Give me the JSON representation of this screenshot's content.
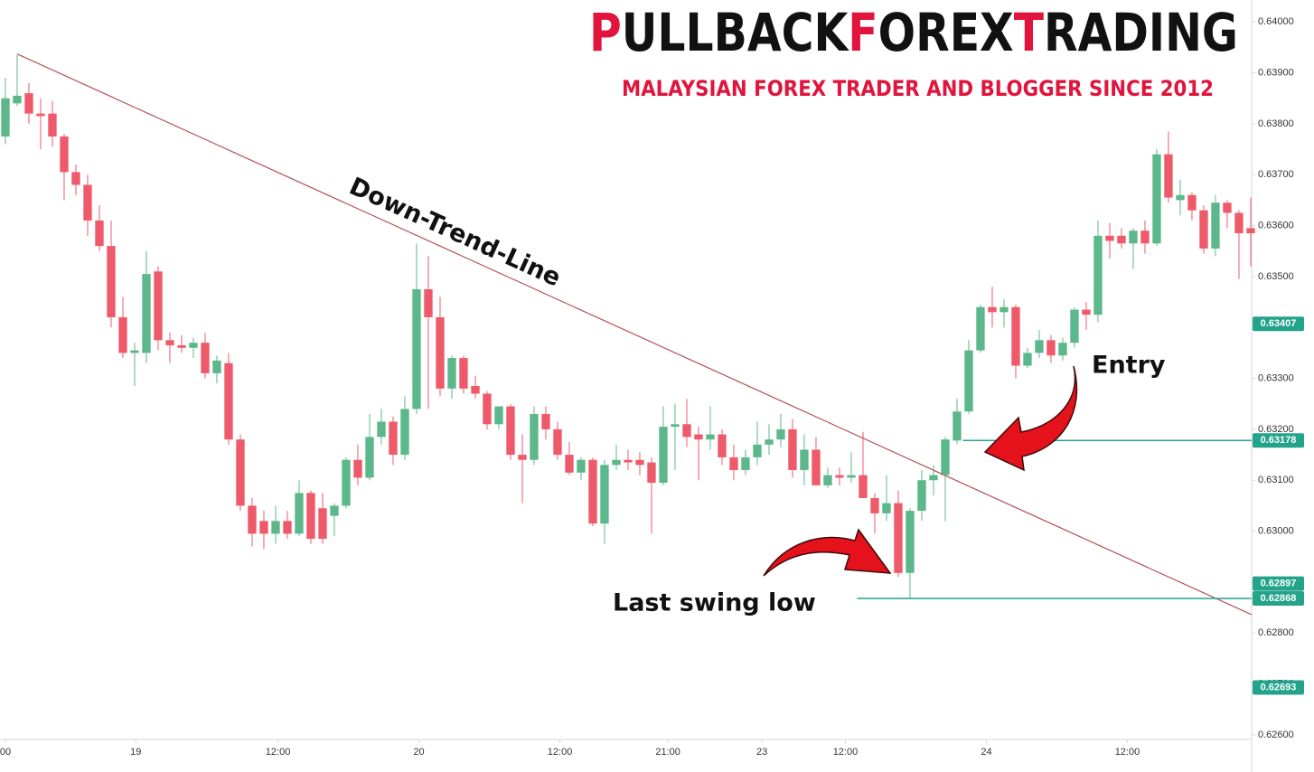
{
  "chart_data": {
    "type": "candlestick",
    "title_parts": [
      "P",
      "ULLBACK",
      "F",
      "OREX",
      "T",
      "RADING"
    ],
    "subtitle": "MALAYSIAN FOREX TRADER AND BLOGGER SINCE 2012",
    "annotations": [
      "Down-Trend-Line",
      "Entry",
      "Last swing low"
    ],
    "up_color": "#5cb88a",
    "down_color": "#ef5a6a",
    "x": [
      0,
      1,
      2,
      3,
      4,
      5,
      6,
      7,
      8,
      9,
      10,
      11,
      12,
      13,
      14,
      15,
      16,
      17,
      18,
      19,
      20,
      21,
      22,
      23,
      24,
      25,
      26,
      27,
      28,
      29,
      30,
      31,
      32,
      33,
      34,
      35,
      36,
      37,
      38,
      39,
      40,
      41,
      42,
      43,
      44,
      45,
      46,
      47,
      48,
      49,
      50,
      51,
      52,
      53,
      54,
      55,
      56,
      57,
      58,
      59,
      60,
      61,
      62,
      63,
      64,
      65,
      66,
      67,
      68,
      69,
      70,
      71,
      72,
      73,
      74,
      75,
      76,
      77,
      78,
      79,
      80,
      81,
      82,
      83,
      84,
      85,
      86,
      87,
      88,
      89,
      90,
      91,
      92,
      93,
      94,
      95,
      96,
      97,
      98,
      99,
      100,
      101,
      102,
      103,
      104,
      105,
      106
    ],
    "open": [
      0.63775,
      0.6384,
      0.6386,
      0.6382,
      0.6382,
      0.63775,
      0.63705,
      0.6368,
      0.6361,
      0.6356,
      0.6342,
      0.6335,
      0.6335,
      0.6351,
      0.63375,
      0.63365,
      0.6336,
      0.6337,
      0.6331,
      0.6333,
      0.6318,
      0.6305,
      0.6302,
      0.62995,
      0.6302,
      0.62995,
      0.63075,
      0.63045,
      0.6303,
      0.6305,
      0.6314,
      0.63105,
      0.63185,
      0.63215,
      0.6315,
      0.6324,
      0.63475,
      0.6342,
      0.6328,
      0.6334,
      0.63285,
      0.6327,
      0.6321,
      0.63245,
      0.6315,
      0.6314,
      0.6323,
      0.632,
      0.6315,
      0.63115,
      0.6314,
      0.63015,
      0.6313,
      0.6314,
      0.6314,
      0.63135,
      0.63095,
      0.63205,
      0.6321,
      0.6319,
      0.6318,
      0.6319,
      0.63145,
      0.6312,
      0.63145,
      0.6317,
      0.6318,
      0.632,
      0.6312,
      0.6316,
      0.6309,
      0.6311,
      0.63105,
      0.6311,
      0.63065,
      0.63035,
      0.63055,
      0.62918,
      0.6304,
      0.631,
      0.6311,
      0.63178,
      0.63235,
      0.63355,
      0.6344,
      0.6343,
      0.6344,
      0.63325,
      0.6335,
      0.63375,
      0.63345,
      0.6337,
      0.63435,
      0.63425,
      0.6358,
      0.6358,
      0.63565,
      0.6359,
      0.63565,
      0.6374,
      0.6365,
      0.6366,
      0.6363,
      0.63555,
      0.63645,
      0.63625,
      0.63595
    ],
    "high": [
      0.6389,
      0.63935,
      0.6388,
      0.6385,
      0.63845,
      0.6378,
      0.6372,
      0.637,
      0.6364,
      0.6361,
      0.6346,
      0.6337,
      0.6355,
      0.6352,
      0.6339,
      0.63385,
      0.6338,
      0.6339,
      0.63345,
      0.6335,
      0.6319,
      0.63065,
      0.6304,
      0.6305,
      0.6304,
      0.631,
      0.6308,
      0.63075,
      0.63055,
      0.63145,
      0.6317,
      0.6323,
      0.6324,
      0.63225,
      0.63265,
      0.63565,
      0.6354,
      0.6346,
      0.63345,
      0.63345,
      0.63305,
      0.63275,
      0.63245,
      0.6325,
      0.6319,
      0.63245,
      0.63245,
      0.63215,
      0.63175,
      0.63145,
      0.63145,
      0.6314,
      0.6317,
      0.6316,
      0.63155,
      0.63145,
      0.63245,
      0.6325,
      0.6326,
      0.63205,
      0.63245,
      0.632,
      0.6317,
      0.6316,
      0.63215,
      0.6321,
      0.6323,
      0.6322,
      0.6319,
      0.63185,
      0.63125,
      0.63125,
      0.63155,
      0.63195,
      0.63075,
      0.6311,
      0.6308,
      0.63045,
      0.6312,
      0.6313,
      0.63185,
      0.6326,
      0.63375,
      0.63445,
      0.6348,
      0.63455,
      0.63445,
      0.6336,
      0.63395,
      0.63385,
      0.6338,
      0.6344,
      0.6345,
      0.6361,
      0.63605,
      0.63595,
      0.63595,
      0.6361,
      0.6375,
      0.63785,
      0.6369,
      0.63665,
      0.6364,
      0.6366,
      0.6365,
      0.6363,
      0.63655
    ],
    "low": [
      0.6376,
      0.63835,
      0.638,
      0.6375,
      0.63755,
      0.6365,
      0.6366,
      0.6358,
      0.6355,
      0.634,
      0.6334,
      0.63285,
      0.6333,
      0.63355,
      0.6333,
      0.6335,
      0.6334,
      0.633,
      0.6329,
      0.6317,
      0.6304,
      0.6297,
      0.62965,
      0.62975,
      0.62985,
      0.6299,
      0.62975,
      0.62975,
      0.6299,
      0.63045,
      0.6309,
      0.631,
      0.6317,
      0.6313,
      0.6314,
      0.6323,
      0.6324,
      0.63265,
      0.6326,
      0.6327,
      0.6326,
      0.632,
      0.632,
      0.6314,
      0.63055,
      0.6313,
      0.6318,
      0.6314,
      0.6311,
      0.631,
      0.6301,
      0.62975,
      0.6312,
      0.6312,
      0.6311,
      0.62995,
      0.6309,
      0.6312,
      0.63165,
      0.631,
      0.6316,
      0.6313,
      0.631,
      0.6311,
      0.6313,
      0.6315,
      0.63165,
      0.63105,
      0.6309,
      0.6309,
      0.63085,
      0.6309,
      0.63095,
      0.63065,
      0.62995,
      0.6302,
      0.6291,
      0.62868,
      0.6302,
      0.6307,
      0.6302,
      0.6317,
      0.6323,
      0.6335,
      0.634,
      0.634,
      0.633,
      0.6332,
      0.6334,
      0.6333,
      0.63335,
      0.6336,
      0.63395,
      0.6341,
      0.63535,
      0.63555,
      0.63515,
      0.63545,
      0.6356,
      0.63645,
      0.6362,
      0.6361,
      0.63545,
      0.6354,
      0.63595,
      0.63495,
      0.6352
    ],
    "close": [
      0.6385,
      0.63855,
      0.6382,
      0.63815,
      0.63775,
      0.63705,
      0.6368,
      0.6361,
      0.6356,
      0.6342,
      0.6335,
      0.63355,
      0.63505,
      0.63375,
      0.63365,
      0.6336,
      0.6337,
      0.6331,
      0.63335,
      0.6318,
      0.6305,
      0.62995,
      0.62995,
      0.6302,
      0.62995,
      0.63075,
      0.62985,
      0.62985,
      0.6305,
      0.6314,
      0.63105,
      0.63185,
      0.63215,
      0.6315,
      0.6324,
      0.63475,
      0.6342,
      0.6328,
      0.6334,
      0.6328,
      0.6327,
      0.6321,
      0.63245,
      0.6315,
      0.6314,
      0.6323,
      0.632,
      0.6315,
      0.63115,
      0.6314,
      0.63015,
      0.6313,
      0.6314,
      0.63135,
      0.6313,
      0.63095,
      0.63205,
      0.6321,
      0.63185,
      0.6318,
      0.6319,
      0.63145,
      0.6312,
      0.63145,
      0.6317,
      0.6318,
      0.632,
      0.6312,
      0.6316,
      0.6309,
      0.6311,
      0.63105,
      0.6311,
      0.63065,
      0.63035,
      0.63055,
      0.62918,
      0.6304,
      0.631,
      0.6311,
      0.6318,
      0.63235,
      0.63355,
      0.6344,
      0.6343,
      0.6344,
      0.63325,
      0.6335,
      0.63375,
      0.63345,
      0.6337,
      0.63435,
      0.63425,
      0.6358,
      0.6357,
      0.63565,
      0.6359,
      0.63565,
      0.6374,
      0.63655,
      0.6366,
      0.6363,
      0.63555,
      0.63645,
      0.63625,
      0.63585,
      0.63585
    ],
    "xlim": [
      -0.46,
      106.08
    ],
    "ylim": [
      0.62591,
      0.64043
    ],
    "xticks": [
      {
        "value": 0,
        "label": "00"
      },
      {
        "value": 11.1,
        "label": "19"
      },
      {
        "value": 23.2,
        "label": "12:00"
      },
      {
        "value": 35.2,
        "label": "20"
      },
      {
        "value": 47.2,
        "label": "12:00"
      },
      {
        "value": 56.4,
        "label": "21:00"
      },
      {
        "value": 64.4,
        "label": "23"
      },
      {
        "value": 71.5,
        "label": "12:00"
      },
      {
        "value": 83.5,
        "label": "24"
      },
      {
        "value": 95.5,
        "label": "12:00"
      }
    ],
    "yticks": [
      {
        "value": 0.64,
        "label": "0.64000"
      },
      {
        "value": 0.639,
        "label": "0.63900"
      },
      {
        "value": 0.638,
        "label": "0.63800"
      },
      {
        "value": 0.637,
        "label": "0.63700"
      },
      {
        "value": 0.636,
        "label": "0.63600"
      },
      {
        "value": 0.635,
        "label": "0.63500"
      },
      {
        "value": 0.634,
        "label": "0.63400"
      },
      {
        "value": 0.633,
        "label": "0.63300"
      },
      {
        "value": 0.632,
        "label": "0.63200"
      },
      {
        "value": 0.631,
        "label": "0.63100"
      },
      {
        "value": 0.63,
        "label": "0.63000"
      },
      {
        "value": 0.629,
        "label": "0.62900"
      },
      {
        "value": 0.628,
        "label": "0.62800"
      },
      {
        "value": 0.627,
        "label": "0.62700"
      },
      {
        "value": 0.626,
        "label": "0.62600"
      }
    ],
    "price_labels": [
      {
        "value": 0.63407,
        "label": "0.63407"
      },
      {
        "value": 0.63178,
        "label": "0.63178"
      },
      {
        "value": 0.62897,
        "label": "0.62897"
      },
      {
        "value": 0.62868,
        "label": "0.62868"
      },
      {
        "value": 0.62693,
        "label": "0.62693"
      }
    ],
    "price_label_color": "#22a38a",
    "levels": [
      {
        "y": 0.63178,
        "x0": 81.5
      },
      {
        "y": 0.62868,
        "x0": 72.5
      }
    ],
    "level_color": "#22a38a",
    "trend_line": {
      "x": [
        1,
        106.08
      ],
      "y": [
        0.63937,
        0.62836
      ],
      "color": "#b5535a"
    }
  }
}
